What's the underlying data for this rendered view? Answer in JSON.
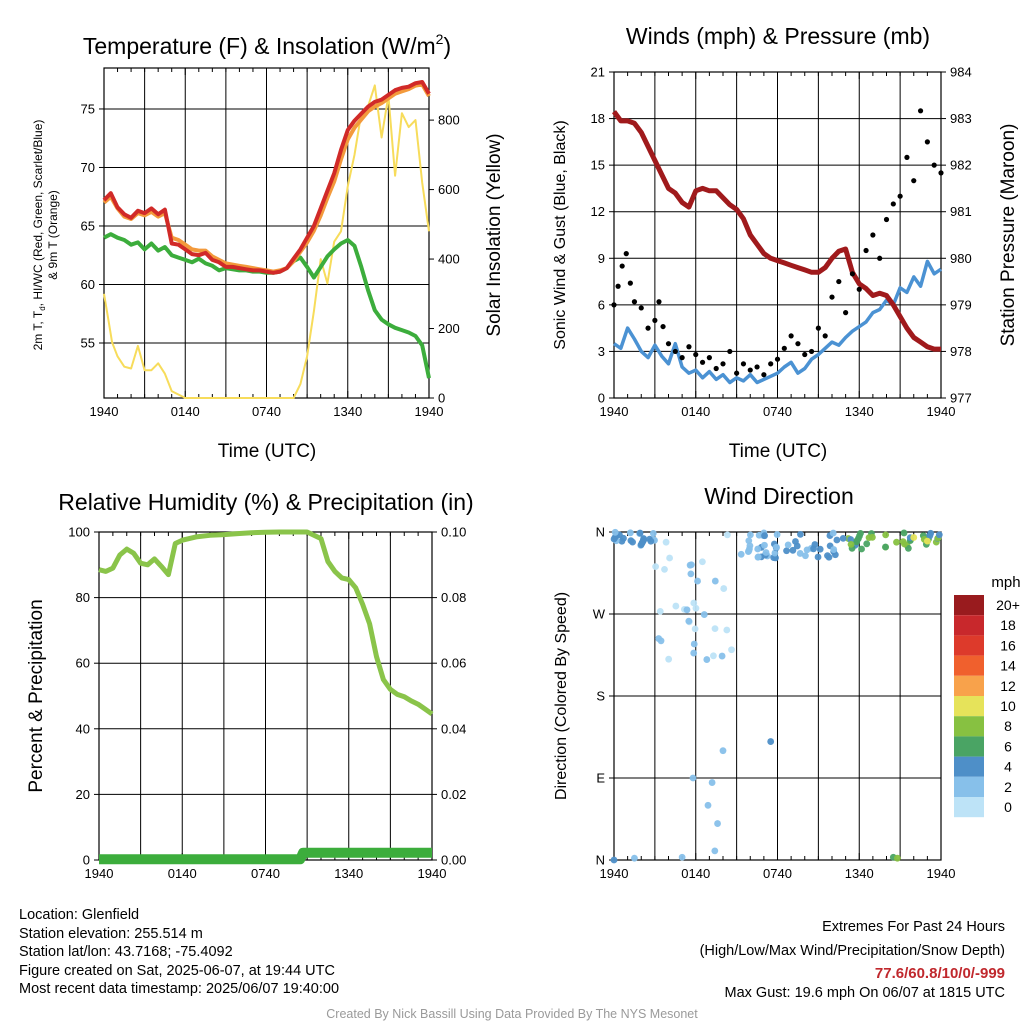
{
  "chart_data": [
    {
      "type": "line",
      "title": "Temperature (F) & Insolation (W/m²)",
      "title_text": "Temperature (F) & Insolation (W/m",
      "title_sup": "2",
      "title_close": ")",
      "xlabel": "Time (UTC)",
      "ylabel_left": "2m T, T  , HI/WC (Red, Green, Scarlet/Blue)",
      "ylabel_left_sub": "d",
      "ylabel_left_line1": "2m T, T",
      "ylabel_left_line1b": ", HI/WC (Red, Green, Scarlet/Blue)",
      "ylabel_left_line2": "& 9m T (Orange)",
      "ylabel_right": "Solar Insolation (Yellow)",
      "x_ticks": [
        "1940",
        "0140",
        "0740",
        "1340",
        "1940"
      ],
      "y_left_ticks": [
        55,
        60,
        65,
        70,
        75
      ],
      "y_left_lim": [
        50.3,
        78.5
      ],
      "y_right_ticks": [
        0,
        200,
        400,
        600,
        800
      ],
      "y_right_lim": [
        0,
        950
      ],
      "x_lim": [
        0,
        24
      ],
      "grid": true,
      "series": [
        {
          "name": "2m T",
          "color": "#d12a28",
          "axis": "left",
          "x": [
            0,
            0.5,
            1,
            1.5,
            2,
            2.5,
            3,
            3.5,
            4,
            4.5,
            5,
            5.5,
            6,
            6.5,
            7,
            7.5,
            8,
            8.5,
            9,
            9.5,
            10,
            10.5,
            11,
            11.5,
            12,
            12.5,
            13,
            13.5,
            14,
            14.5,
            15,
            15.5,
            16,
            16.5,
            17,
            17.5,
            18,
            18.5,
            19,
            19.5,
            20,
            20.5,
            21,
            21.5,
            22,
            22.5,
            23,
            23.5,
            24
          ],
          "y": [
            67.2,
            67.8,
            66.6,
            66.0,
            65.7,
            66.3,
            66.1,
            66.5,
            66.0,
            66.4,
            63.5,
            63.4,
            63.0,
            62.6,
            62.5,
            62.7,
            62.1,
            61.9,
            61.5,
            61.5,
            61.4,
            61.3,
            61.2,
            61.2,
            61.1,
            61.0,
            61.1,
            61.4,
            62.2,
            63.0,
            64.0,
            65.0,
            66.5,
            68.0,
            69.5,
            71.5,
            73.2,
            74.0,
            74.6,
            75.2,
            75.6,
            75.8,
            76.2,
            76.6,
            76.8,
            76.9,
            77.2,
            77.3,
            76.3
          ]
        },
        {
          "name": "9m T",
          "color": "#f39a3c",
          "axis": "left",
          "x": [
            0,
            0.5,
            1,
            1.5,
            2,
            2.5,
            3,
            3.5,
            4,
            4.5,
            5,
            5.5,
            6,
            6.5,
            7,
            7.5,
            8,
            8.5,
            9,
            9.5,
            10,
            10.5,
            11,
            11.5,
            12,
            12.5,
            13,
            13.5,
            14,
            14.5,
            15,
            15.5,
            16,
            16.5,
            17,
            17.5,
            18,
            18.5,
            19,
            19.5,
            20,
            20.5,
            21,
            21.5,
            22,
            22.5,
            23,
            23.5,
            24
          ],
          "y": [
            67.0,
            67.5,
            66.5,
            65.8,
            65.6,
            66.1,
            65.9,
            66.2,
            65.8,
            66.1,
            64.0,
            63.8,
            63.4,
            63.0,
            62.9,
            62.9,
            62.4,
            62.1,
            61.8,
            61.7,
            61.6,
            61.5,
            61.4,
            61.3,
            61.2,
            61.1,
            61.2,
            61.4,
            62.0,
            62.8,
            63.6,
            64.6,
            65.9,
            67.4,
            68.8,
            70.7,
            72.4,
            73.4,
            74.1,
            74.8,
            75.2,
            75.5,
            75.9,
            76.3,
            76.5,
            76.7,
            77.0,
            77.1,
            76.1
          ]
        },
        {
          "name": "Td",
          "color": "#3cad3c",
          "axis": "left",
          "x": [
            0,
            0.5,
            1,
            1.5,
            2,
            2.5,
            3,
            3.5,
            4,
            4.5,
            5,
            5.5,
            6,
            6.5,
            7,
            7.5,
            8,
            8.5,
            9,
            9.5,
            10,
            10.5,
            11,
            11.5,
            12,
            12.5,
            13,
            13.5,
            14,
            14.5,
            15,
            15.5,
            16,
            16.5,
            17,
            17.5,
            18,
            18.5,
            19,
            19.5,
            20,
            20.5,
            21,
            21.5,
            22,
            22.5,
            23,
            23.5,
            24
          ],
          "y": [
            64.0,
            64.3,
            64.0,
            63.8,
            63.4,
            63.6,
            63.0,
            63.5,
            62.9,
            63.2,
            62.5,
            62.3,
            62.1,
            61.9,
            62.2,
            61.8,
            61.6,
            61.2,
            61.4,
            61.3,
            61.2,
            61.2,
            61.1,
            61.1,
            61.0,
            61.0,
            61.1,
            61.4,
            62.0,
            62.3,
            61.5,
            60.6,
            61.5,
            62.4,
            63.0,
            63.5,
            63.8,
            63.3,
            61.5,
            59.5,
            57.8,
            57.0,
            56.6,
            56.3,
            56.1,
            55.9,
            55.6,
            54.8,
            52.0
          ]
        },
        {
          "name": "Solar Insolation",
          "color": "#f7dc5b",
          "axis": "right",
          "x": [
            0,
            0.3,
            0.6,
            1,
            1.5,
            2,
            2.5,
            3,
            3.5,
            4,
            4.5,
            5,
            6,
            7,
            8,
            9,
            10,
            11,
            12,
            13,
            14,
            14.5,
            15,
            15.5,
            16,
            16.5,
            17,
            17.5,
            18,
            18.5,
            19,
            19.5,
            20,
            20.5,
            21,
            21.5,
            22,
            22.5,
            23,
            23.5,
            24
          ],
          "y": [
            300,
            230,
            160,
            120,
            90,
            85,
            150,
            80,
            80,
            100,
            70,
            20,
            0,
            0,
            0,
            0,
            0,
            0,
            0,
            0,
            0,
            40,
            120,
            250,
            400,
            330,
            450,
            480,
            610,
            700,
            820,
            840,
            900,
            750,
            870,
            640,
            820,
            780,
            800,
            620,
            480
          ]
        }
      ],
      "note_heat_index": "HI/WC"
    },
    {
      "type": "line",
      "title": "Winds (mph) & Pressure (mb)",
      "xlabel": "Time (UTC)",
      "ylabel_left": "Sonic Wind & Gust (Blue, Black)",
      "ylabel_right": "Station Pressure (Maroon)",
      "x_ticks": [
        "1940",
        "0140",
        "0740",
        "1340",
        "1940"
      ],
      "y_left_ticks": [
        0,
        3,
        6,
        9,
        12,
        15,
        18,
        21
      ],
      "y_left_lim": [
        0,
        21
      ],
      "y_right_ticks": [
        977,
        978,
        979,
        980,
        981,
        982,
        983,
        984
      ],
      "y_right_lim": [
        977,
        984
      ],
      "x_lim": [
        0,
        24
      ],
      "grid": true,
      "series": [
        {
          "name": "Sonic Wind",
          "color": "#4b92d3",
          "axis": "left",
          "x": [
            0,
            0.5,
            1,
            1.5,
            2,
            2.5,
            3,
            3.5,
            4,
            4.5,
            5,
            5.5,
            6,
            6.5,
            7,
            7.5,
            8,
            8.5,
            9,
            9.5,
            10,
            10.5,
            11,
            11.5,
            12,
            12.5,
            13,
            13.5,
            14,
            14.5,
            15,
            15.5,
            16,
            16.5,
            17,
            17.5,
            18,
            18.5,
            19,
            19.5,
            20,
            20.5,
            21,
            21.5,
            22,
            22.5,
            23,
            23.5,
            24
          ],
          "y": [
            3.5,
            3.2,
            4.5,
            3.8,
            3.0,
            2.6,
            3.4,
            2.7,
            2.2,
            3.5,
            2.0,
            1.6,
            1.8,
            1.3,
            1.7,
            1.2,
            1.5,
            1.0,
            1.3,
            1.1,
            1.5,
            1.0,
            1.2,
            1.4,
            1.6,
            2.0,
            2.3,
            1.6,
            1.9,
            2.5,
            2.8,
            3.2,
            3.6,
            3.4,
            3.9,
            4.3,
            4.6,
            4.9,
            5.5,
            5.7,
            6.3,
            6.0,
            7.1,
            6.8,
            7.8,
            7.2,
            8.8,
            8.0,
            8.3
          ]
        },
        {
          "name": "Station Pressure",
          "color": "#a01a1c",
          "axis": "right",
          "x": [
            0,
            0.5,
            1,
            1.5,
            2,
            2.5,
            3,
            3.5,
            4,
            4.5,
            5,
            5.5,
            6,
            6.5,
            7,
            7.5,
            8,
            8.5,
            9,
            9.5,
            10,
            10.5,
            11,
            11.5,
            12,
            12.5,
            13,
            13.5,
            14,
            14.5,
            15,
            15.5,
            16,
            16.5,
            17,
            17.5,
            18,
            18.5,
            19,
            19.5,
            20,
            20.5,
            21,
            21.5,
            22,
            22.5,
            23,
            23.5,
            24
          ],
          "y": [
            983.15,
            982.95,
            982.95,
            982.9,
            982.7,
            982.4,
            982.1,
            981.8,
            981.5,
            981.4,
            981.2,
            981.1,
            981.45,
            981.5,
            981.45,
            981.45,
            981.3,
            981.15,
            981.05,
            980.85,
            980.5,
            980.3,
            980.1,
            980.0,
            979.95,
            979.9,
            979.85,
            979.8,
            979.75,
            979.7,
            979.7,
            979.8,
            980.0,
            980.15,
            980.2,
            979.7,
            979.45,
            979.35,
            979.2,
            979.25,
            979.2,
            979.0,
            978.75,
            978.5,
            978.3,
            978.2,
            978.1,
            978.05,
            978.05
          ]
        },
        {
          "name": "Gust",
          "color": "#000000",
          "axis": "left",
          "x": [
            0,
            0.3,
            0.6,
            0.9,
            1.2,
            1.5,
            2,
            2.5,
            3,
            3.3,
            3.6,
            4,
            4.5,
            5,
            5.5,
            6,
            6.5,
            7,
            7.5,
            8,
            8.5,
            9,
            9.5,
            10,
            10.5,
            11,
            11.5,
            12,
            12.5,
            13,
            13.5,
            14,
            14.5,
            15,
            15.5,
            16,
            16.5,
            17,
            17.5,
            18,
            18.5,
            19,
            19.5,
            20,
            20.5,
            21,
            21.5,
            22,
            22.5,
            23,
            23.5,
            24
          ],
          "y": [
            6.0,
            7.2,
            8.5,
            9.3,
            7.4,
            6.2,
            5.8,
            4.5,
            5.0,
            6.2,
            4.6,
            3.5,
            3.0,
            2.6,
            3.3,
            2.8,
            2.3,
            2.6,
            1.9,
            2.2,
            3.0,
            1.6,
            2.2,
            1.8,
            2.0,
            1.5,
            2.2,
            2.5,
            3.2,
            4.0,
            3.5,
            2.8,
            3.0,
            4.5,
            4.0,
            6.5,
            7.5,
            5.5,
            8.0,
            7.0,
            9.5,
            10.5,
            9.0,
            11.5,
            12.5,
            13.0,
            15.5,
            14.0,
            18.5,
            16.5,
            15.0,
            14.5
          ]
        }
      ]
    },
    {
      "type": "line",
      "title": "Relative Humidity (%) & Precipitation (in)",
      "ylabel_left": "Percent & Precipitation",
      "x_ticks": [
        "1940",
        "0140",
        "0740",
        "1340",
        "1940"
      ],
      "y_left_ticks": [
        0,
        20,
        40,
        60,
        80,
        100
      ],
      "y_left_lim": [
        0,
        100
      ],
      "y_right_ticks": [
        "0.00",
        "0.02",
        "0.04",
        "0.06",
        "0.08",
        "0.10"
      ],
      "y_right_lim": [
        0,
        0.1
      ],
      "x_lim": [
        0,
        24
      ],
      "grid": true,
      "series": [
        {
          "name": "Relative Humidity",
          "color": "#8ac44a",
          "axis": "left",
          "x": [
            0,
            0.5,
            1,
            1.5,
            2,
            2.5,
            3,
            3.5,
            4,
            4.5,
            5,
            5.5,
            6,
            7,
            8,
            9,
            10,
            11,
            12,
            13,
            14,
            15,
            16,
            16.5,
            17,
            17.5,
            18,
            18.5,
            19,
            19.5,
            20,
            20.5,
            21,
            21.5,
            22,
            22.5,
            23,
            23.5,
            24
          ],
          "y": [
            88.5,
            88.0,
            89.0,
            93.0,
            94.8,
            93.5,
            90.5,
            90.0,
            91.8,
            89.5,
            87.0,
            96.5,
            97.5,
            98.5,
            99.0,
            99.2,
            99.5,
            99.8,
            99.9,
            100,
            100,
            100,
            98.0,
            91.0,
            88.0,
            86.0,
            85.5,
            83.0,
            78.0,
            72.0,
            62.0,
            55.0,
            52.0,
            50.5,
            49.8,
            48.5,
            47.5,
            46.0,
            44.5
          ]
        },
        {
          "name": "Precipitation",
          "color": "#3cad3c",
          "axis": "right",
          "x": [
            0,
            14.5,
            14.7,
            24
          ],
          "y": [
            0.0002,
            0.0002,
            0.0022,
            0.0022
          ]
        }
      ]
    },
    {
      "type": "scatter",
      "title": "Wind Direction",
      "ylabel": "Direction (Colored By Speed)",
      "x_ticks": [
        "1940",
        "0140",
        "0740",
        "1340",
        "1940"
      ],
      "y_ticks": [
        "N",
        "E",
        "S",
        "W",
        "N"
      ],
      "y_lim": [
        0,
        360
      ],
      "x_lim": [
        0,
        24
      ],
      "grid": true,
      "legend": {
        "title": "mph",
        "placement": "right",
        "labels": [
          "20+",
          "18",
          "16",
          "14",
          "12",
          "10",
          "8",
          "6",
          "4",
          "2",
          "0"
        ],
        "colors": [
          "#991b1e",
          "#c8282c",
          "#dd3a2b",
          "#f0602d",
          "#f8a24b",
          "#e6e35a",
          "#87c141",
          "#4aa464",
          "#4e8fc8",
          "#87c0ea",
          "#bde3f7"
        ]
      },
      "points_summary": "dots of wind direction over time, colored by speed"
    }
  ],
  "info_left": [
    "Location: Glenfield",
    "Station elevation: 255.514 m",
    "Station lat/lon: 43.7168; -75.4092",
    "Figure created on Sat, 2025-06-07, at 19:44 UTC",
    "Most recent data timestamp: 2025/06/07 19:40:00"
  ],
  "extremes_title": "Extremes For Past 24 Hours",
  "extremes_subtitle": "(High/Low/Max Wind/Precipitation/Snow Depth)",
  "extremes_values": "77.6/60.8/10/0/-999",
  "max_gust": "Max Gust: 19.6 mph On 06/07 at 1815 UTC",
  "credit": "Created By Nick Bassill Using Data Provided By The NYS Mesonet"
}
